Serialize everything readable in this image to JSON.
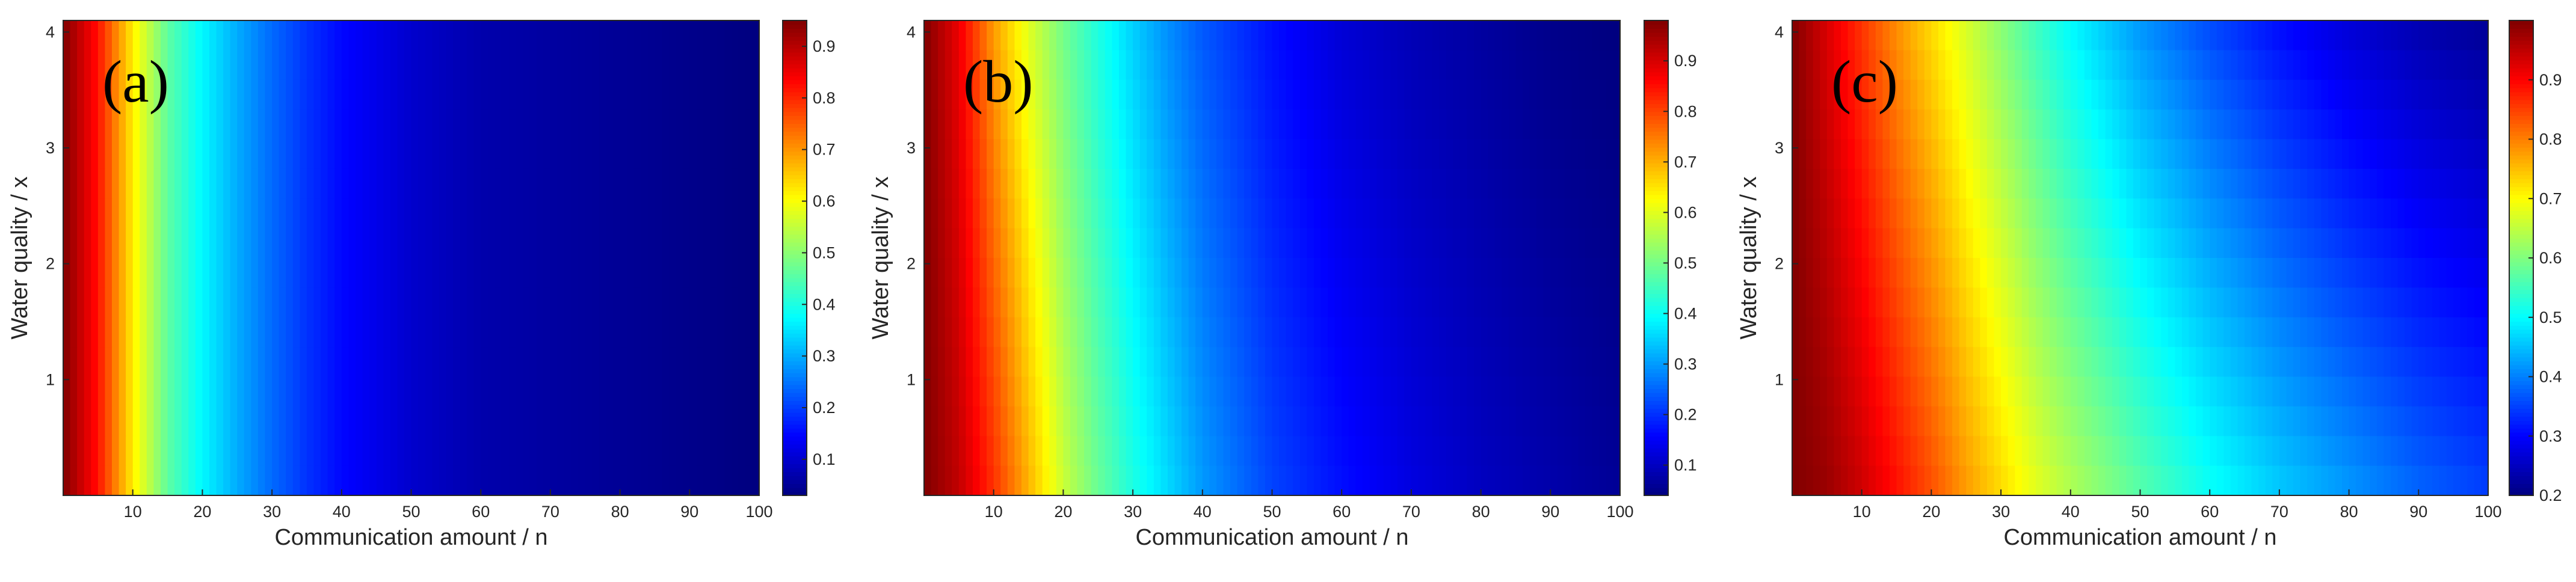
{
  "chart_data": [
    {
      "type": "heatmap",
      "panel_label": "(a)",
      "xlabel": "Communication amount / n",
      "ylabel": "Water quality / x",
      "xlim": [
        0,
        100
      ],
      "ylim": [
        0,
        4.1
      ],
      "x_ticks": [
        10,
        20,
        30,
        40,
        50,
        60,
        70,
        80,
        90,
        100
      ],
      "y_ticks": [
        1,
        2,
        3,
        4
      ],
      "colorbar": {
        "range": [
          0.03,
          0.95
        ],
        "ticks": [
          0.1,
          0.2,
          0.3,
          0.4,
          0.5,
          0.6,
          0.7,
          0.8,
          0.9
        ],
        "colormap": "jet"
      },
      "field_profile": {
        "x": [
          0,
          5,
          10,
          15,
          20,
          25,
          30,
          35,
          40,
          50,
          60,
          70,
          80,
          90,
          100
        ],
        "at_y_0": [
          0.95,
          0.82,
          0.62,
          0.46,
          0.37,
          0.3,
          0.24,
          0.19,
          0.15,
          0.1,
          0.07,
          0.06,
          0.05,
          0.04,
          0.03
        ],
        "at_y_4": [
          0.95,
          0.82,
          0.62,
          0.46,
          0.37,
          0.3,
          0.24,
          0.19,
          0.15,
          0.1,
          0.07,
          0.06,
          0.05,
          0.04,
          0.03
        ]
      }
    },
    {
      "type": "heatmap",
      "panel_label": "(b)",
      "xlabel": "Communication amount / n",
      "ylabel": "Water quality / x",
      "xlim": [
        0,
        100
      ],
      "ylim": [
        0,
        4.1
      ],
      "x_ticks": [
        10,
        20,
        30,
        40,
        50,
        60,
        70,
        80,
        90,
        100
      ],
      "y_ticks": [
        1,
        2,
        3,
        4
      ],
      "colorbar": {
        "range": [
          0.04,
          0.98
        ],
        "ticks": [
          0.1,
          0.2,
          0.3,
          0.4,
          0.5,
          0.6,
          0.7,
          0.8,
          0.9
        ],
        "colormap": "jet"
      },
      "field_profile": {
        "x": [
          0,
          5,
          10,
          15,
          20,
          25,
          30,
          35,
          40,
          50,
          60,
          70,
          80,
          90,
          100
        ],
        "at_y_0": [
          0.98,
          0.92,
          0.82,
          0.7,
          0.58,
          0.49,
          0.42,
          0.36,
          0.3,
          0.22,
          0.17,
          0.13,
          0.1,
          0.08,
          0.06
        ],
        "at_y_4": [
          0.98,
          0.88,
          0.72,
          0.6,
          0.5,
          0.42,
          0.35,
          0.29,
          0.24,
          0.17,
          0.12,
          0.09,
          0.07,
          0.05,
          0.04
        ]
      }
    },
    {
      "type": "heatmap",
      "panel_label": "(c)",
      "xlabel": "Communication amount / n",
      "ylabel": "Water quality / x",
      "xlim": [
        0,
        100
      ],
      "ylim": [
        0,
        4.1
      ],
      "x_ticks": [
        10,
        20,
        30,
        40,
        50,
        60,
        70,
        80,
        90,
        100
      ],
      "y_ticks": [
        1,
        2,
        3,
        4
      ],
      "colorbar": {
        "range": [
          0.2,
          1.0
        ],
        "ticks": [
          0.2,
          0.3,
          0.4,
          0.5,
          0.6,
          0.7,
          0.8,
          0.9
        ],
        "colormap": "jet"
      },
      "field_profile": {
        "x": [
          0,
          5,
          10,
          15,
          20,
          25,
          30,
          35,
          40,
          50,
          60,
          70,
          80,
          90,
          100
        ],
        "at_y_0": [
          1.0,
          0.98,
          0.94,
          0.89,
          0.84,
          0.78,
          0.73,
          0.68,
          0.64,
          0.57,
          0.51,
          0.46,
          0.42,
          0.38,
          0.35
        ],
        "at_y_4": [
          1.0,
          0.93,
          0.86,
          0.79,
          0.73,
          0.67,
          0.61,
          0.55,
          0.5,
          0.42,
          0.36,
          0.31,
          0.27,
          0.24,
          0.22
        ]
      }
    }
  ]
}
